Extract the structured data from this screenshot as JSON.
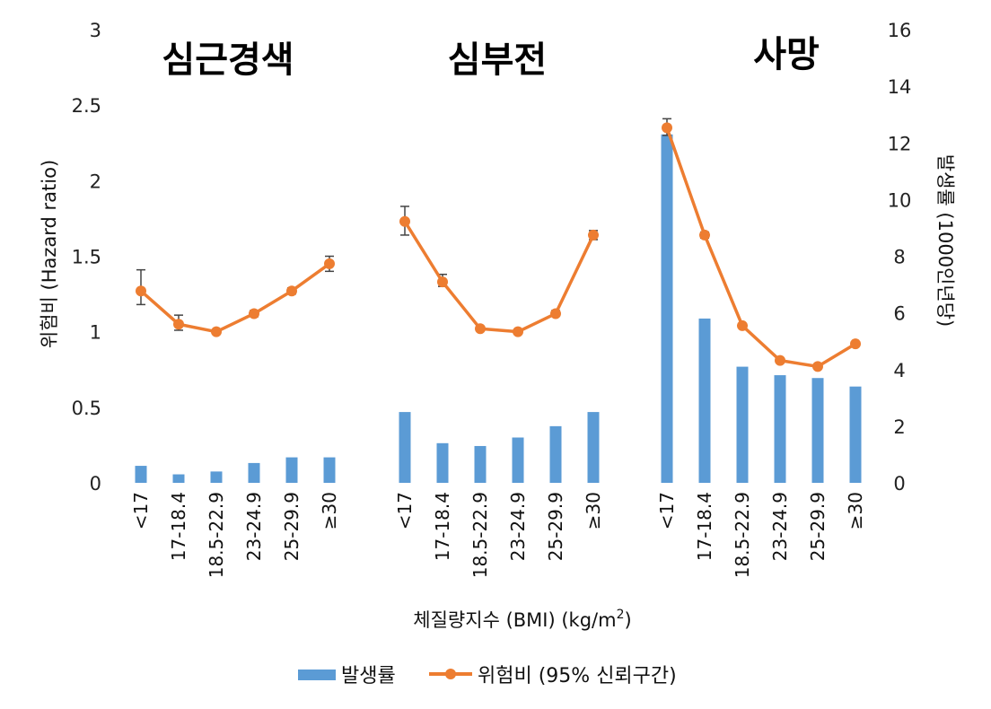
{
  "chart_data": {
    "type": "bar+line",
    "groups": [
      "심근경색",
      "심부전",
      "사망"
    ],
    "categories": [
      "<17",
      "17-18.4",
      "18.5-22.9",
      "23-24.9",
      "25-29.9",
      "≥30"
    ],
    "left_axis": {
      "label": "위험비 (Hazard ratio)",
      "ylim": [
        0,
        3
      ],
      "ticks": [
        "0",
        "0.5",
        "1",
        "1.5",
        "2",
        "2.5",
        "3"
      ]
    },
    "right_axis": {
      "label": "발생률 (1000인년당)",
      "ylim": [
        0,
        16
      ],
      "ticks": [
        "0",
        "2",
        "4",
        "6",
        "8",
        "10",
        "12",
        "14",
        "16"
      ]
    },
    "xlabel_main": "체질량지수 (BMI) (kg/m",
    "xlabel_sup": "2",
    "xlabel_end": ")",
    "series": [
      {
        "name": "발생률",
        "type": "bar",
        "axis": "right",
        "color": "#5b9bd5",
        "values": [
          [
            0.6,
            0.3,
            0.4,
            0.7,
            0.9,
            0.9
          ],
          [
            2.5,
            1.4,
            1.3,
            1.6,
            2.0,
            2.5
          ],
          [
            12.3,
            5.8,
            4.1,
            3.8,
            3.7,
            3.4
          ]
        ]
      },
      {
        "name": "위험비 (95% 신뢰구간)",
        "type": "line",
        "axis": "left",
        "color": "#ed7d31",
        "values": [
          [
            1.27,
            1.05,
            1.0,
            1.12,
            1.27,
            1.45
          ],
          [
            1.73,
            1.33,
            1.02,
            1.0,
            1.12,
            1.64
          ],
          [
            2.35,
            1.64,
            1.04,
            0.81,
            0.77,
            0.92
          ]
        ],
        "ci": [
          [
            [
              1.18,
              1.41
            ],
            [
              1.01,
              1.11
            ],
            null,
            [
              1.1,
              1.14
            ],
            [
              1.25,
              1.29
            ],
            [
              1.4,
              1.5
            ]
          ],
          [
            [
              1.64,
              1.83
            ],
            [
              1.3,
              1.38
            ],
            null,
            null,
            [
              1.11,
              1.14
            ],
            [
              1.61,
              1.67
            ]
          ],
          [
            [
              2.3,
              2.41
            ],
            [
              1.62,
              1.66
            ],
            null,
            null,
            null,
            null
          ]
        ]
      }
    ]
  }
}
